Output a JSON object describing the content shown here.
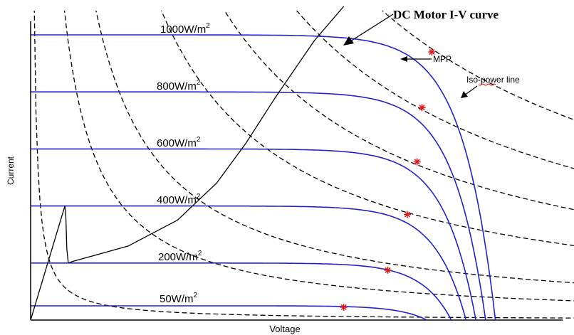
{
  "chart_data": {
    "type": "line",
    "xlabel": "Voltage",
    "ylabel": "Current",
    "series": [
      {
        "name": "1000W/m",
        "exponent": "2",
        "isc": 1.0,
        "voc": 0.95,
        "mpp": [
          0.82,
          0.94
        ]
      },
      {
        "name": "800W/m",
        "exponent": "2",
        "isc": 0.8,
        "voc": 0.93,
        "mpp": [
          0.8,
          0.745
        ]
      },
      {
        "name": "600W/m",
        "exponent": "2",
        "isc": 0.6,
        "voc": 0.91,
        "mpp": [
          0.79,
          0.555
        ]
      },
      {
        "name": "400W/m",
        "exponent": "2",
        "isc": 0.4,
        "voc": 0.89,
        "mpp": [
          0.77,
          0.37
        ]
      },
      {
        "name": "200W/m",
        "exponent": "2",
        "isc": 0.2,
        "voc": 0.86,
        "mpp": [
          0.73,
          0.175
        ]
      },
      {
        "name": "50W/m",
        "exponent": "2",
        "isc": 0.05,
        "voc": 0.81,
        "mpp": [
          0.64,
          0.045
        ]
      }
    ],
    "annotations": {
      "motor": "DC Motor I-V curve",
      "mpp": "MPP",
      "iso": "Iso-power line"
    }
  }
}
